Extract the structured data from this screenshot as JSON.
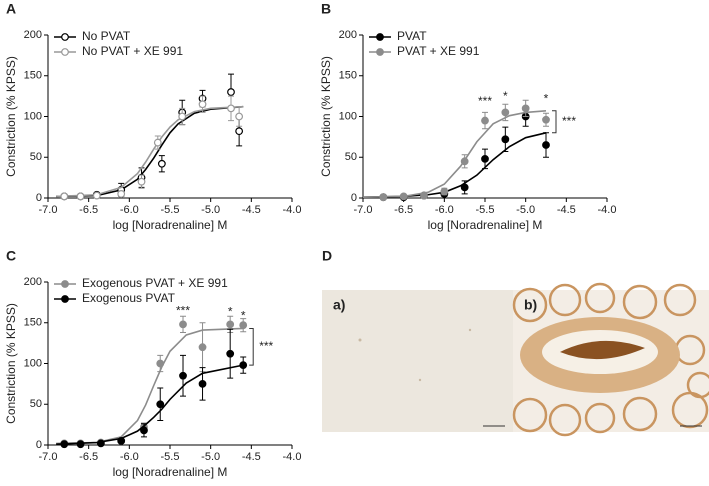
{
  "chart_data": [
    {
      "type": "line",
      "panel_label": "A",
      "xlabel": "log [Noradrenaline] M",
      "ylabel": "Constriction (%  KPSS)",
      "xlim": [
        -7,
        -4
      ],
      "xticks": [
        {
          "value": -7,
          "label": "-7.0"
        },
        -6.5,
        {
          "value": -6,
          "label": "-6.0"
        },
        -5.5,
        {
          "value": -5,
          "label": "-5.0"
        },
        -4.5,
        {
          "value": -4,
          "label": "-4.0"
        }
      ],
      "ylim": [
        0,
        200
      ],
      "yticks": [
        0,
        50,
        100,
        150,
        200
      ],
      "legend": "upper left",
      "series": [
        {
          "name": "No PVAT",
          "color": "#000000",
          "marker": "open",
          "x": [
            -6.8,
            -6.6,
            -6.4,
            -6.1,
            -5.85,
            -5.6,
            -5.35,
            -5.1,
            -4.75,
            -4.65
          ],
          "values": [
            2,
            2,
            4,
            10,
            25,
            42,
            105,
            122,
            130,
            82
          ],
          "errors": [
            1,
            1,
            2,
            8,
            12,
            10,
            15,
            10,
            22,
            18
          ],
          "fit": {
            "x": [
              -6.9,
              -6.4,
              -6.1,
              -5.9,
              -5.8,
              -5.7,
              -5.6,
              -5.5,
              -5.4,
              -5.2,
              -5.0,
              -4.6
            ],
            "values": [
              2,
              3,
              10,
              23,
              35,
              49,
              65,
              80,
              91,
              104,
              109,
              112
            ]
          }
        },
        {
          "name": "No PVAT + XE 991",
          "color": "#999999",
          "marker": "open",
          "x": [
            -6.8,
            -6.6,
            -6.4,
            -6.1,
            -5.85,
            -5.65,
            -5.35,
            -5.1,
            -4.75,
            -4.65
          ],
          "values": [
            2,
            2,
            3,
            5,
            20,
            68,
            100,
            115,
            110,
            100
          ],
          "errors": [
            1,
            1,
            2,
            3,
            8,
            8,
            10,
            10,
            15,
            12
          ],
          "fit": {
            "x": [
              -6.9,
              -6.4,
              -6.1,
              -5.9,
              -5.8,
              -5.7,
              -5.6,
              -5.5,
              -5.4,
              -5.2,
              -5.0,
              -4.6
            ],
            "values": [
              2,
              4,
              13,
              30,
              44,
              60,
              75,
              87,
              96,
              106,
              110,
              112
            ]
          }
        }
      ]
    },
    {
      "type": "line",
      "panel_label": "B",
      "xlabel": "log [Noradrenaline] M",
      "ylabel": "Constriction (%  KPSS)",
      "xlim": [
        -7,
        -4
      ],
      "xticks": [
        {
          "value": -7,
          "label": "-7.0"
        },
        -6.5,
        {
          "value": -6,
          "label": "-6.0"
        },
        -5.5,
        {
          "value": -5,
          "label": "-5.0"
        },
        -4.5,
        {
          "value": -4,
          "label": "-4.0"
        }
      ],
      "ylim": [
        0,
        200
      ],
      "yticks": [
        0,
        50,
        100,
        150,
        200
      ],
      "legend": "upper left",
      "series": [
        {
          "name": "PVAT",
          "color": "#000000",
          "marker": "filled",
          "x": [
            -6.75,
            -6.5,
            -6.25,
            -6,
            -5.75,
            -5.5,
            -5.25,
            -5,
            -4.75
          ],
          "values": [
            1,
            1,
            3,
            5,
            13,
            48,
            72,
            100,
            65
          ],
          "errors": [
            1,
            1,
            2,
            3,
            8,
            12,
            15,
            12,
            15
          ],
          "fit": {
            "x": [
              -7,
              -6.5,
              -6.2,
              -6,
              -5.8,
              -5.6,
              -5.4,
              -5.2,
              -5,
              -4.75
            ],
            "values": [
              1,
              2,
              4,
              7,
              15,
              28,
              47,
              63,
              74,
              80
            ]
          }
        },
        {
          "name": "PVAT + XE 991",
          "color": "#8c8c8c",
          "marker": "filled",
          "x": [
            -6.75,
            -6.5,
            -6.25,
            -6,
            -5.75,
            -5.5,
            -5.25,
            -5,
            -4.75
          ],
          "values": [
            1,
            2,
            3,
            8,
            45,
            95,
            105,
            110,
            96
          ],
          "errors": [
            1,
            1,
            2,
            4,
            8,
            10,
            10,
            10,
            8
          ],
          "fit": {
            "x": [
              -7,
              -6.5,
              -6.2,
              -6,
              -5.8,
              -5.6,
              -5.4,
              -5.2,
              -5,
              -4.75
            ],
            "values": [
              1,
              2,
              7,
              17,
              39,
              69,
              91,
              101,
              105,
              107
            ]
          }
        }
      ],
      "annotations": [
        {
          "text": "***",
          "x": -5.5,
          "y": 118
        },
        {
          "text": "*",
          "x": -5.25,
          "y": 124
        },
        {
          "text": "*",
          "x": -4.75,
          "y": 121
        }
      ],
      "bracket": "***"
    },
    {
      "type": "line",
      "panel_label": "C",
      "xlabel": "log [Noradrenaline] M",
      "ylabel": "Constriction (%  KPSS)",
      "xlim": [
        -7,
        -4
      ],
      "xticks": [
        {
          "value": -7,
          "label": "-7.0"
        },
        -6.5,
        {
          "value": -6,
          "label": "-6.0"
        },
        -5.5,
        {
          "value": -5,
          "label": "-5.0"
        },
        -4.5,
        {
          "value": -4,
          "label": "-4.0"
        }
      ],
      "ylim": [
        0,
        200
      ],
      "yticks": [
        0,
        50,
        100,
        150,
        200
      ],
      "legend": "upper left",
      "series": [
        {
          "name": "Exogenous PVAT + XE 991",
          "color": "#8c8c8c",
          "marker": "filled",
          "x": [
            -6.8,
            -6.6,
            -6.35,
            -6.1,
            -5.82,
            -5.62,
            -5.34,
            -5.1,
            -4.76,
            -4.6
          ],
          "values": [
            2,
            2,
            3,
            5,
            22,
            100,
            148,
            120,
            148,
            147
          ],
          "errors": [
            1,
            1,
            1,
            2,
            5,
            10,
            10,
            30,
            10,
            8
          ],
          "fit": {
            "x": [
              -6.9,
              -6.4,
              -6.1,
              -5.9,
              -5.8,
              -5.7,
              -5.6,
              -5.5,
              -5.3,
              -5.1,
              -4.6
            ],
            "values": [
              2,
              3,
              10,
              30,
              49,
              73,
              96,
              115,
              135,
              141,
              143
            ]
          }
        },
        {
          "name": "Exogenous PVAT",
          "color": "#000000",
          "marker": "filled",
          "x": [
            -6.8,
            -6.6,
            -6.35,
            -6.1,
            -5.82,
            -5.62,
            -5.34,
            -5.1,
            -4.76,
            -4.6
          ],
          "values": [
            1,
            1,
            2,
            5,
            18,
            50,
            85,
            75,
            112,
            98
          ],
          "errors": [
            1,
            1,
            1,
            2,
            8,
            20,
            25,
            20,
            30,
            10
          ],
          "fit": {
            "x": [
              -6.9,
              -6.4,
              -6.1,
              -5.9,
              -5.8,
              -5.7,
              -5.6,
              -5.5,
              -5.3,
              -5.1,
              -4.6
            ],
            "values": [
              1,
              3,
              8,
              17,
              25,
              34,
              44,
              56,
              76,
              88,
              98
            ]
          }
        }
      ],
      "annotations": [
        {
          "text": "***",
          "x": -5.34,
          "y": 164
        },
        {
          "text": "*",
          "x": -4.76,
          "y": 163
        },
        {
          "text": "*",
          "x": -4.6,
          "y": 158
        }
      ],
      "bracket": "***"
    }
  ],
  "panel_d": {
    "label": "D",
    "images": [
      {
        "label": "a)"
      },
      {
        "label": "b)"
      }
    ]
  }
}
